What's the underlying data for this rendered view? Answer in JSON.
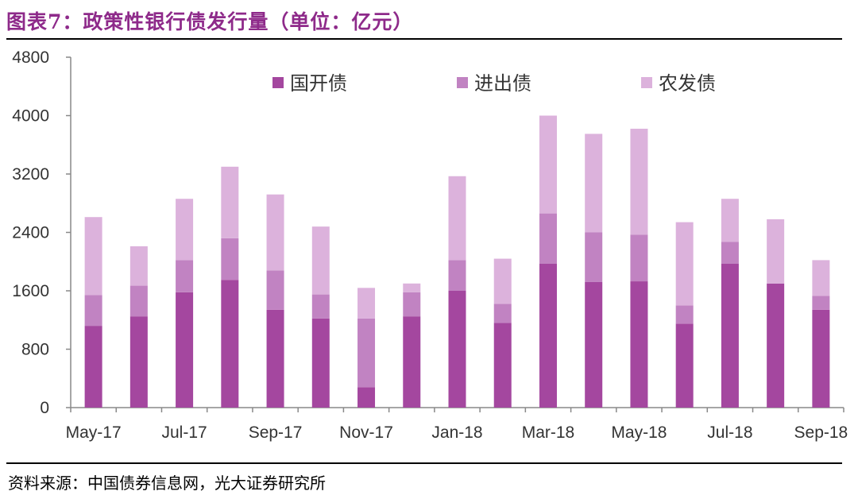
{
  "header": {
    "title": "图表7：政策性银行债发行量（单位：亿元）"
  },
  "footer": {
    "source": "资料来源：中国债券信息网，光大证券研究所"
  },
  "colors": {
    "title": "#8e2a8a",
    "series": [
      "#a4479f",
      "#c183c2",
      "#dcb2dc"
    ],
    "axis": "#898989"
  },
  "chart_data": {
    "type": "bar",
    "stacked": true,
    "categories": [
      "May-17",
      "Jun-17",
      "Jul-17",
      "Aug-17",
      "Sep-17",
      "Oct-17",
      "Nov-17",
      "Dec-17",
      "Jan-18",
      "Feb-18",
      "Mar-18",
      "Apr-18",
      "May-18",
      "Jun-18",
      "Jul-18",
      "Aug-18",
      "Sep-18"
    ],
    "x_tick_labels": [
      "May-17",
      "Jul-17",
      "Sep-17",
      "Nov-17",
      "Jan-18",
      "Mar-18",
      "May-18",
      "Jul-18",
      "Sep-18"
    ],
    "series": [
      {
        "name": "国开债",
        "values": [
          1120,
          1250,
          1580,
          1750,
          1340,
          1220,
          280,
          1250,
          1600,
          1160,
          1970,
          1720,
          1730,
          1150,
          1970,
          1700,
          1340
        ]
      },
      {
        "name": "进出债",
        "values": [
          420,
          420,
          440,
          570,
          540,
          330,
          940,
          330,
          420,
          260,
          690,
          680,
          640,
          250,
          300,
          0,
          190
        ]
      },
      {
        "name": "农发债",
        "values": [
          1070,
          540,
          840,
          980,
          1040,
          930,
          420,
          120,
          1150,
          620,
          1340,
          1350,
          1450,
          1140,
          590,
          880,
          490
        ]
      }
    ],
    "ylim": [
      0,
      4800
    ],
    "yticks": [
      0,
      800,
      1600,
      2400,
      3200,
      4000,
      4800
    ],
    "grid": false,
    "legend": "top"
  }
}
